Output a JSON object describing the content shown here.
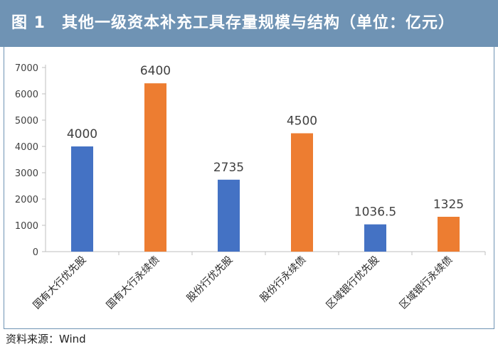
{
  "header": {
    "title": "图 1　其他一级资本补充工具存量规模与结构（单位：亿元）"
  },
  "source": "资料来源：Wind",
  "colors": {
    "header_bg": "#6f93b4",
    "blue_bar": "#4472c4",
    "orange_bar": "#ed7d31"
  },
  "chart_data": {
    "type": "bar",
    "title": "",
    "xlabel": "",
    "ylabel": "",
    "categories": [
      "国有大行优先股",
      "国有大行永续债",
      "股份行优先股",
      "股份行永续债",
      "区域银行优先股",
      "区域银行永续债"
    ],
    "values": [
      4000,
      6400,
      2735,
      4500,
      1036.5,
      1325
    ],
    "value_labels": [
      "4000",
      "6400",
      "2735",
      "4500",
      "1036.5",
      "1325"
    ],
    "bar_colors": [
      "#4472c4",
      "#ed7d31",
      "#4472c4",
      "#ed7d31",
      "#4472c4",
      "#ed7d31"
    ],
    "ylim": [
      0,
      7000
    ],
    "yticks": [
      0,
      1000,
      2000,
      3000,
      4000,
      5000,
      6000,
      7000
    ],
    "grid": false,
    "legend": "none"
  }
}
